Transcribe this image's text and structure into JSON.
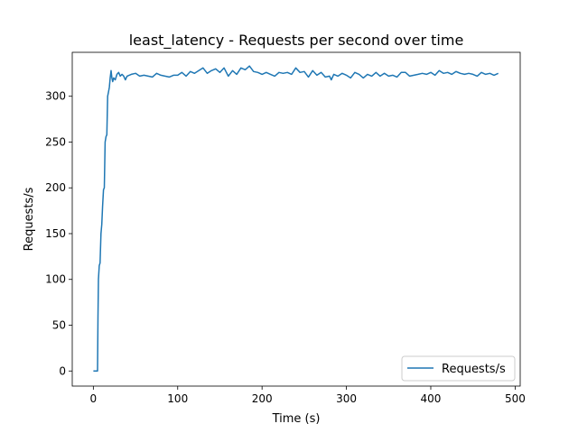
{
  "chart_data": {
    "type": "line",
    "title": "least_latency - Requests per second over time",
    "xlabel": "Time (s)",
    "ylabel": "Requests/s",
    "xlim": [
      -25,
      506
    ],
    "ylim": [
      -16.5,
      348
    ],
    "xticks": [
      0,
      100,
      200,
      300,
      400,
      500
    ],
    "yticks": [
      0,
      50,
      100,
      150,
      200,
      250,
      300
    ],
    "grid": false,
    "legend": "bottom-right",
    "line_color": "#1f77b4",
    "series": [
      {
        "name": "Requests/s",
        "x": [
          0,
          2,
          4,
          5,
          5.5,
          6,
          7,
          8,
          9,
          10,
          11,
          12,
          13,
          14,
          15,
          16,
          17,
          18,
          19,
          20,
          21,
          22,
          23,
          24,
          26,
          28,
          30,
          32,
          34,
          36,
          38,
          40,
          45,
          50,
          55,
          60,
          65,
          70,
          75,
          80,
          85,
          90,
          95,
          100,
          105,
          110,
          115,
          120,
          125,
          130,
          135,
          140,
          145,
          150,
          155,
          160,
          165,
          170,
          175,
          180,
          185,
          190,
          195,
          200,
          205,
          210,
          215,
          220,
          225,
          230,
          235,
          240,
          245,
          250,
          255,
          260,
          265,
          270,
          275,
          280,
          282,
          285,
          290,
          295,
          300,
          305,
          310,
          315,
          320,
          325,
          330,
          335,
          340,
          345,
          350,
          355,
          360,
          365,
          370,
          375,
          380,
          385,
          390,
          395,
          400,
          405,
          410,
          415,
          420,
          425,
          430,
          435,
          440,
          445,
          450,
          455,
          460,
          465,
          470,
          475,
          480
        ],
        "values": [
          0,
          0,
          0,
          0,
          60,
          100,
          115,
          118,
          150,
          160,
          180,
          198,
          200,
          250,
          256,
          258,
          300,
          305,
          310,
          320,
          328,
          320,
          316,
          320,
          318,
          324,
          326,
          322,
          324,
          322,
          318,
          322,
          324,
          325,
          322,
          323,
          322,
          321,
          325,
          323,
          322,
          321,
          323,
          323,
          326,
          322,
          327,
          325,
          328,
          331,
          325,
          328,
          330,
          326,
          331,
          322,
          328,
          324,
          331,
          329,
          333,
          327,
          326,
          324,
          326,
          324,
          322,
          326,
          325,
          326,
          324,
          331,
          326,
          327,
          321,
          328,
          323,
          326,
          321,
          322,
          318,
          324,
          322,
          325,
          323,
          320,
          326,
          324,
          320,
          324,
          322,
          326,
          322,
          325,
          322,
          323,
          321,
          326,
          326,
          322,
          323,
          324,
          325,
          324,
          326,
          323,
          328,
          325,
          326,
          324,
          327,
          325,
          324,
          325,
          324,
          322,
          326,
          324,
          325,
          323,
          325
        ]
      }
    ]
  }
}
